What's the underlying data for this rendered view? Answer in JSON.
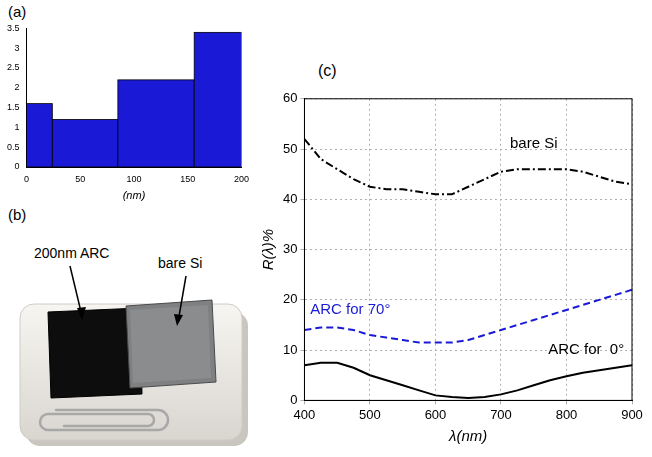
{
  "chart_data": [
    {
      "type": "histogram",
      "panel": "(a)",
      "xlabel": "(nm)",
      "bins": [
        0,
        24,
        85,
        156,
        200
      ],
      "values": [
        1.6,
        1.2,
        2.2,
        3.4
      ],
      "color": "#1a1ad6",
      "xlim": [
        0,
        200
      ],
      "xticks": [
        0,
        50,
        100,
        150,
        200
      ],
      "ylim": [
        0,
        3.5
      ],
      "yticks": [
        0,
        0.5,
        1,
        1.5,
        2,
        2.5,
        3,
        3.5
      ],
      "grid": false
    },
    {
      "type": "line",
      "panel": "(c)",
      "xlabel": "λ(nm)",
      "ylabel": "R(λ)%",
      "x": [
        400,
        425,
        450,
        475,
        500,
        525,
        550,
        575,
        600,
        625,
        650,
        675,
        700,
        725,
        750,
        775,
        800,
        825,
        850,
        875,
        900
      ],
      "series": [
        {
          "name": "bare Si",
          "color": "#000000",
          "line_style": "dashdot",
          "label_position": [
            750,
            51
          ],
          "values": [
            52,
            48,
            46,
            44,
            42.5,
            42,
            42,
            41.5,
            41,
            41,
            42.5,
            44,
            45.5,
            46,
            46,
            46,
            46,
            45.5,
            44.5,
            43.5,
            43
          ]
        },
        {
          "name": "ARC for 70°",
          "color": "#1a1ad6",
          "line_style": "dashed",
          "label_position": [
            470,
            18
          ],
          "values": [
            14,
            14.5,
            14.5,
            14,
            13,
            12.5,
            12,
            11.5,
            11.5,
            11.5,
            12,
            13,
            14,
            15,
            16,
            17,
            18,
            19,
            20,
            21,
            22
          ]
        },
        {
          "name": "ARC for  0°",
          "color": "#000000",
          "line_style": "solid",
          "label_position": [
            830,
            10
          ],
          "values": [
            7,
            7.5,
            7.5,
            6.5,
            5,
            4,
            3,
            2,
            1,
            0.7,
            0.5,
            0.7,
            1.2,
            2,
            3,
            4,
            4.8,
            5.5,
            6,
            6.5,
            7
          ]
        }
      ],
      "xlim": [
        400,
        900
      ],
      "xticks": [
        400,
        500,
        600,
        700,
        800,
        900
      ],
      "ylim": [
        0,
        60
      ],
      "yticks": [
        0,
        10,
        20,
        30,
        40,
        50,
        60
      ],
      "grid": true
    }
  ],
  "photo": {
    "panel": "(b)",
    "texts": [
      "200nm ARC",
      "bare Si"
    ]
  }
}
